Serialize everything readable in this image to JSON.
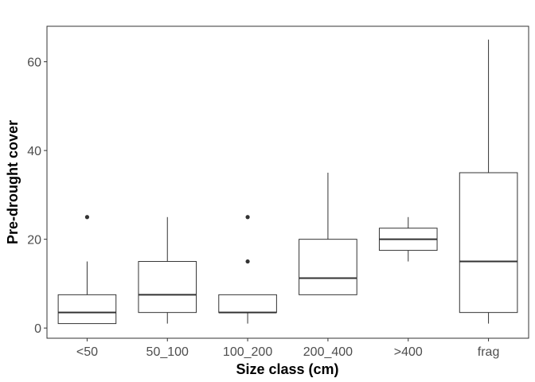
{
  "chart_data": {
    "type": "boxplot",
    "xlabel": "Size class (cm)",
    "ylabel": "Pre-drought cover",
    "ylim": [
      -2.3,
      68
    ],
    "yticks": [
      0,
      20,
      40,
      60
    ],
    "grid": false,
    "categories": [
      "<50",
      "50_100",
      "100_200",
      "200_400",
      ">400",
      "frag"
    ],
    "boxes": [
      {
        "min": 1,
        "q1": 1,
        "median": 3.5,
        "q3": 7.5,
        "max": 15,
        "outliers": [
          25
        ]
      },
      {
        "min": 1,
        "q1": 3.5,
        "median": 7.5,
        "q3": 15,
        "max": 25,
        "outliers": []
      },
      {
        "min": 1,
        "q1": 3.5,
        "median": 3.5,
        "q3": 7.5,
        "max": 7.5,
        "outliers": [
          15,
          25
        ]
      },
      {
        "min": 7.5,
        "q1": 7.5,
        "median": 11.25,
        "q3": 20,
        "max": 35,
        "outliers": []
      },
      {
        "min": 15,
        "q1": 17.5,
        "median": 20,
        "q3": 22.5,
        "max": 25,
        "outliers": []
      },
      {
        "min": 1,
        "q1": 3.5,
        "median": 15,
        "q3": 35,
        "max": 65,
        "outliers": []
      }
    ],
    "colors": {
      "line": "#333333",
      "fill": "#ffffff",
      "panel_border": "#333333",
      "tick_text": "#4d4d4d"
    }
  }
}
